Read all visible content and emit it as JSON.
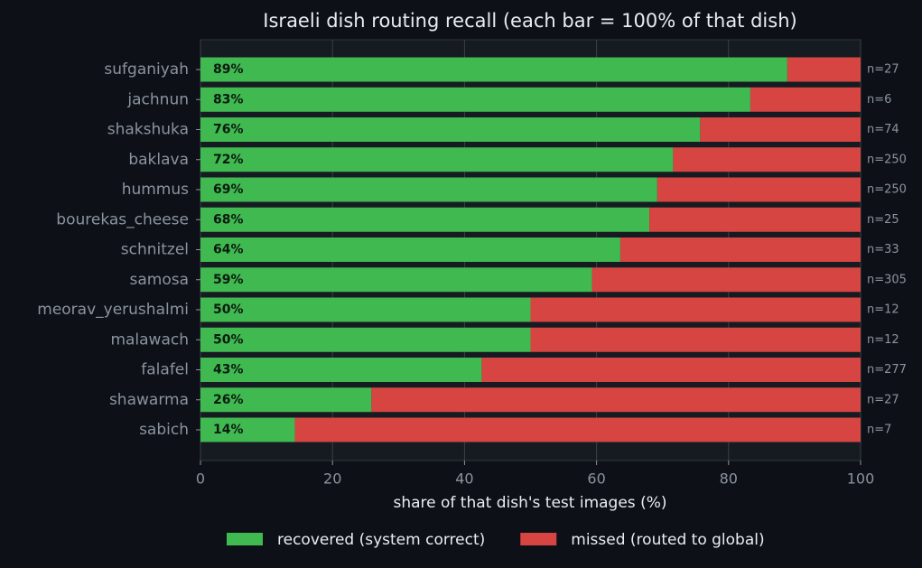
{
  "chart_data": {
    "type": "stacked_barh",
    "title": "Israeli dish routing recall  (each bar = 100% of that dish)",
    "xlabel": "share of that dish's test images (%)",
    "categories": [
      "sufganiyah",
      "jachnun",
      "shakshuka",
      "baklava",
      "hummus",
      "bourekas_cheese",
      "schnitzel",
      "samosa",
      "meorav_yerushalmi",
      "malawach",
      "falafel",
      "shawarma",
      "sabich"
    ],
    "series": [
      {
        "name": "recovered (system correct)",
        "color": "#3fb950",
        "values": [
          88.9,
          83.3,
          75.7,
          71.6,
          69.2,
          68,
          63.6,
          59.3,
          50,
          50,
          42.6,
          25.9,
          14.3
        ],
        "value_labels": [
          "89%",
          "83%",
          "76%",
          "72%",
          "69%",
          "68%",
          "64%",
          "59%",
          "50%",
          "50%",
          "43%",
          "26%",
          "14%"
        ]
      },
      {
        "name": "missed (routed to global)",
        "color": "#d64541",
        "values": [
          11.1,
          16.7,
          24.3,
          28.4,
          30.8,
          32,
          36.4,
          40.7,
          50,
          50,
          57.4,
          74.1,
          85.7
        ]
      }
    ],
    "n_labels": [
      "n=27",
      "n=6",
      "n=74",
      "n=250",
      "n=250",
      "n=25",
      "n=33",
      "n=305",
      "n=12",
      "n=12",
      "n=277",
      "n=27",
      "n=7"
    ],
    "xlim": [
      0,
      100
    ],
    "xticks": [
      0,
      20,
      40,
      60,
      80,
      100
    ],
    "grid": true,
    "legend": "bottom"
  }
}
